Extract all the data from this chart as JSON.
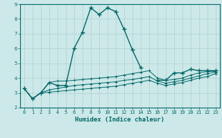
{
  "xlabel": "Humidex (Indice chaleur)",
  "bg_color": "#cce8e8",
  "grid_color": "#b0d0d0",
  "line_color": "#006666",
  "xlim": [
    -0.5,
    23.5
  ],
  "ylim": [
    2,
    9
  ],
  "xticks": [
    0,
    1,
    2,
    3,
    4,
    5,
    6,
    7,
    8,
    9,
    10,
    11,
    12,
    13,
    14,
    15,
    16,
    17,
    18,
    19,
    20,
    21,
    22,
    23
  ],
  "yticks": [
    2,
    3,
    4,
    5,
    6,
    7,
    8,
    9
  ],
  "line1_x": [
    0,
    1,
    2,
    3,
    4,
    5,
    6,
    7,
    8,
    9,
    10,
    11,
    12,
    13,
    14,
    15,
    16,
    17,
    18,
    19,
    20,
    21,
    22,
    23
  ],
  "line1_y": [
    3.3,
    2.6,
    3.0,
    3.7,
    3.5,
    3.5,
    6.0,
    7.1,
    8.75,
    8.3,
    8.75,
    8.5,
    7.3,
    5.9,
    4.7,
    null,
    3.85,
    3.85,
    4.35,
    4.35,
    4.6,
    4.5,
    4.5,
    4.5
  ],
  "line2_x": [
    0,
    1,
    2,
    3,
    4,
    5,
    6,
    7,
    8,
    9,
    10,
    11,
    12,
    13,
    14,
    15,
    16,
    17,
    18,
    19,
    20,
    21,
    22,
    23
  ],
  "line2_y": [
    3.3,
    2.6,
    3.0,
    3.7,
    3.8,
    3.8,
    3.85,
    3.9,
    3.95,
    4.0,
    4.05,
    4.1,
    4.2,
    4.3,
    4.4,
    4.5,
    4.0,
    3.85,
    3.9,
    4.0,
    4.2,
    4.35,
    4.45,
    4.45
  ],
  "line3_x": [
    0,
    1,
    2,
    3,
    4,
    5,
    6,
    7,
    8,
    9,
    10,
    11,
    12,
    13,
    14,
    15,
    16,
    17,
    18,
    19,
    20,
    21,
    22,
    23
  ],
  "line3_y": [
    3.3,
    2.6,
    3.0,
    3.2,
    3.3,
    3.4,
    3.5,
    3.55,
    3.6,
    3.65,
    3.7,
    3.75,
    3.85,
    3.9,
    4.0,
    4.1,
    3.8,
    3.65,
    3.75,
    3.85,
    4.0,
    4.15,
    4.3,
    4.4
  ],
  "line4_x": [
    0,
    1,
    2,
    3,
    4,
    5,
    6,
    7,
    8,
    9,
    10,
    11,
    12,
    13,
    14,
    15,
    16,
    17,
    18,
    19,
    20,
    21,
    22,
    23
  ],
  "line4_y": [
    3.3,
    2.6,
    3.0,
    3.05,
    3.1,
    3.15,
    3.2,
    3.25,
    3.3,
    3.35,
    3.4,
    3.45,
    3.55,
    3.65,
    3.75,
    3.85,
    3.65,
    3.5,
    3.6,
    3.7,
    3.85,
    4.0,
    4.1,
    4.3
  ]
}
